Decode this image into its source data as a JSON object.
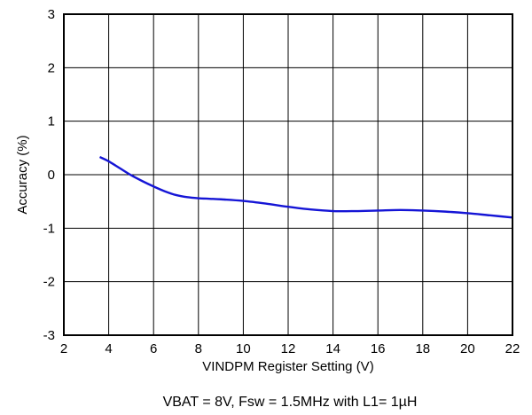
{
  "chart_data": {
    "type": "line",
    "title": "",
    "xlabel": "VINDPM Register Setting (V)",
    "ylabel": "Accuracy (%)",
    "caption": "VBAT = 8V, Fsw = 1.5MHz with L1= 1µH",
    "xlim": [
      2,
      22
    ],
    "ylim": [
      -3,
      3
    ],
    "xticks": [
      2,
      4,
      6,
      8,
      10,
      12,
      14,
      16,
      18,
      20,
      22
    ],
    "yticks": [
      -3,
      -2,
      -1,
      0,
      1,
      2,
      3
    ],
    "xtick_labels": [
      "2",
      "4",
      "6",
      "8",
      "10",
      "12",
      "14",
      "16",
      "18",
      "20",
      "22"
    ],
    "ytick_labels": [
      "-3",
      "-2",
      "-1",
      "0",
      "1",
      "2",
      "3"
    ],
    "grid": true,
    "legend": "none",
    "line_color": "#1515d6",
    "series": [
      {
        "x": [
          3.6,
          4.0,
          4.5,
          5.0,
          5.5,
          6.0,
          6.5,
          7.0,
          7.5,
          8.0,
          8.5,
          9.0,
          10.0,
          11.0,
          12.0,
          13.0,
          14.0,
          15.0,
          16.0,
          17.0,
          18.0,
          19.0,
          20.0,
          21.0,
          22.0
        ],
        "y": [
          0.33,
          0.25,
          0.12,
          -0.01,
          -0.12,
          -0.22,
          -0.31,
          -0.38,
          -0.42,
          -0.44,
          -0.45,
          -0.46,
          -0.49,
          -0.54,
          -0.6,
          -0.65,
          -0.68,
          -0.68,
          -0.67,
          -0.66,
          -0.67,
          -0.69,
          -0.72,
          -0.76,
          -0.8
        ]
      }
    ]
  }
}
